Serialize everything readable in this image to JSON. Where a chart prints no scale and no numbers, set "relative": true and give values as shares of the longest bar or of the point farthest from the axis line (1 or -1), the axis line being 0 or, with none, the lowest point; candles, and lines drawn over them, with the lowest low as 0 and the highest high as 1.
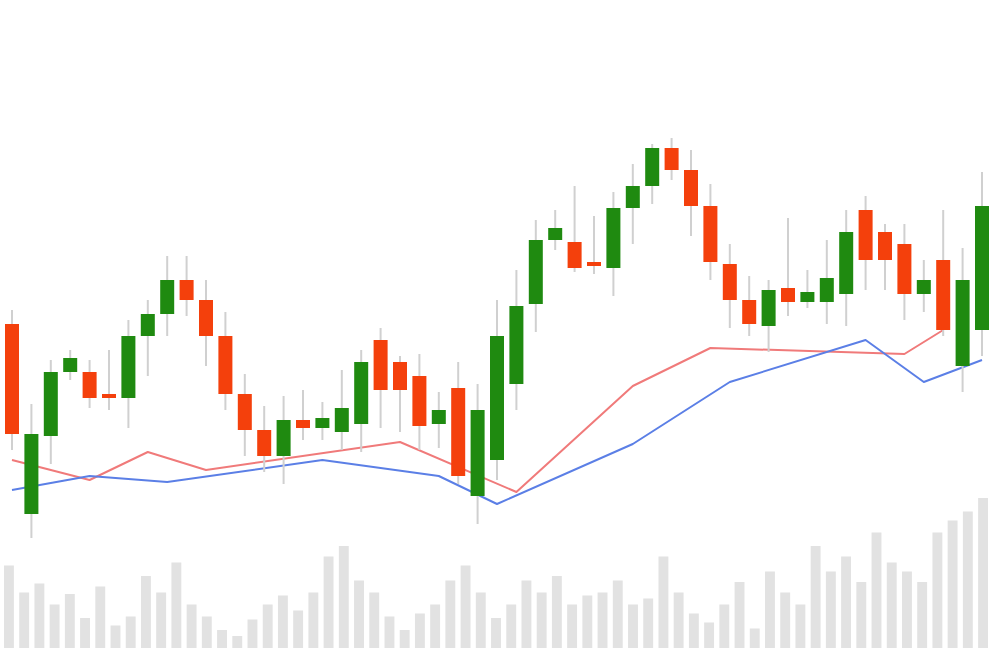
{
  "chart_data": [
    {
      "type": "candlestick",
      "relative": true,
      "categories": [
        null,
        null,
        null,
        null,
        null,
        null,
        null,
        null,
        null,
        null,
        null,
        null,
        null,
        null,
        null,
        null,
        null,
        null,
        null,
        null,
        null,
        null,
        null,
        null,
        null,
        null,
        null,
        null,
        null,
        null,
        null,
        null,
        null,
        null,
        null,
        null,
        null,
        null,
        null,
        null,
        null,
        null,
        null,
        null,
        null,
        null,
        null,
        null,
        null,
        null,
        null
      ],
      "ohlc": [
        [
          0.535,
          0.57,
          0.22,
          0.26
        ],
        [
          0.06,
          0.335,
          0,
          0.26
        ],
        [
          0.255,
          0.445,
          0.185,
          0.415
        ],
        [
          0.415,
          0.47,
          0.395,
          0.45
        ],
        [
          0.415,
          0.445,
          0.325,
          0.35
        ],
        [
          0.36,
          0.47,
          0.32,
          0.35
        ],
        [
          0.35,
          0.545,
          0.275,
          0.505
        ],
        [
          0.505,
          0.595,
          0.405,
          0.56
        ],
        [
          0.56,
          0.705,
          0.505,
          0.645
        ],
        [
          0.645,
          0.705,
          0.555,
          0.595
        ],
        [
          0.595,
          0.645,
          0.43,
          0.505
        ],
        [
          0.505,
          0.565,
          0.32,
          0.36
        ],
        [
          0.36,
          0.41,
          0.205,
          0.27
        ],
        [
          0.27,
          0.33,
          0.165,
          0.205
        ],
        [
          0.205,
          0.355,
          0.135,
          0.295
        ],
        [
          0.295,
          0.37,
          0.245,
          0.275
        ],
        [
          0.275,
          0.34,
          0.245,
          0.3
        ],
        [
          0.265,
          0.42,
          0.22,
          0.325
        ],
        [
          0.285,
          0.47,
          0.215,
          0.44
        ],
        [
          0.495,
          0.525,
          0.275,
          0.37
        ],
        [
          0.44,
          0.455,
          0.265,
          0.37
        ],
        [
          0.405,
          0.46,
          0.22,
          0.28
        ],
        [
          0.285,
          0.365,
          0.225,
          0.32
        ],
        [
          0.375,
          0.44,
          0.135,
          0.155
        ],
        [
          0.105,
          0.385,
          0.035,
          0.32
        ],
        [
          0.195,
          0.595,
          0.145,
          0.505
        ],
        [
          0.385,
          0.67,
          0.32,
          0.58
        ],
        [
          0.585,
          0.795,
          0.515,
          0.745
        ],
        [
          0.745,
          0.82,
          0.72,
          0.775
        ],
        [
          0.74,
          0.88,
          0.665,
          0.675
        ],
        [
          0.69,
          0.805,
          0.66,
          0.68
        ],
        [
          0.675,
          0.865,
          0.605,
          0.825
        ],
        [
          0.825,
          0.935,
          0.735,
          0.88
        ],
        [
          0.88,
          0.985,
          0.835,
          0.975
        ],
        [
          0.975,
          1,
          0.895,
          0.92
        ],
        [
          0.92,
          0.97,
          0.755,
          0.83
        ],
        [
          0.83,
          0.885,
          0.645,
          0.69
        ],
        [
          0.685,
          0.735,
          0.525,
          0.595
        ],
        [
          0.595,
          0.655,
          0.505,
          0.535
        ],
        [
          0.53,
          0.645,
          0.465,
          0.62
        ],
        [
          0.625,
          0.8,
          0.555,
          0.59
        ],
        [
          0.59,
          0.67,
          0.575,
          0.615
        ],
        [
          0.59,
          0.745,
          0.535,
          0.65
        ],
        [
          0.61,
          0.82,
          0.53,
          0.765
        ],
        [
          0.82,
          0.855,
          0.62,
          0.695
        ],
        [
          0.765,
          0.785,
          0.62,
          0.695
        ],
        [
          0.735,
          0.785,
          0.545,
          0.61
        ],
        [
          0.61,
          0.695,
          0.565,
          0.645
        ],
        [
          0.695,
          0.82,
          0.505,
          0.52
        ],
        [
          0.43,
          0.725,
          0.365,
          0.645
        ],
        [
          0.52,
          0.915,
          0.455,
          0.83
        ]
      ],
      "colors": [
        "#f4400c",
        "#1f8a10",
        "#1f8a10",
        "#1f8a10",
        "#f4400c",
        "#f4400c",
        "#1f8a10",
        "#1f8a10",
        "#1f8a10",
        "#f4400c",
        "#f4400c",
        "#f4400c",
        "#f4400c",
        "#f4400c",
        "#1f8a10",
        "#f4400c",
        "#1f8a10",
        "#1f8a10",
        "#1f8a10",
        "#f4400c",
        "#f4400c",
        "#f4400c",
        "#1f8a10",
        "#f4400c",
        "#1f8a10",
        "#1f8a10",
        "#1f8a10",
        "#1f8a10",
        "#1f8a10",
        "#f4400c",
        "#f4400c",
        "#1f8a10",
        "#1f8a10",
        "#1f8a10",
        "#f4400c",
        "#f4400c",
        "#f4400c",
        "#f4400c",
        "#f4400c",
        "#1f8a10",
        "#f4400c",
        "#1f8a10",
        "#1f8a10",
        "#1f8a10",
        "#f4400c",
        "#f4400c",
        "#f4400c",
        "#1f8a10",
        "#f4400c",
        "#1f8a10",
        "#1f8a10"
      ],
      "series": [
        {
          "type": "line",
          "color": "#f07a7a",
          "values": [
            0.195,
            null,
            null,
            null,
            0.145,
            null,
            null,
            0.215,
            null,
            null,
            0.17,
            null,
            null,
            null,
            null,
            null,
            null,
            null,
            null,
            null,
            0.24,
            null,
            null,
            null,
            null,
            null,
            0.115,
            null,
            null,
            null,
            null,
            null,
            0.38,
            null,
            null,
            null,
            0.475,
            null,
            null,
            null,
            null,
            null,
            null,
            null,
            null,
            null,
            0.46,
            null,
            0.52,
            null,
            null
          ]
        },
        {
          "type": "line",
          "color": "#5b7fe6",
          "values": [
            0.12,
            null,
            null,
            null,
            0.155,
            null,
            null,
            null,
            0.14,
            null,
            null,
            null,
            null,
            null,
            null,
            null,
            0.195,
            null,
            null,
            null,
            null,
            null,
            0.155,
            null,
            null,
            0.085,
            null,
            null,
            null,
            null,
            null,
            null,
            0.235,
            null,
            null,
            null,
            null,
            0.39,
            null,
            null,
            null,
            null,
            null,
            null,
            0.495,
            null,
            null,
            0.39,
            null,
            null,
            0.445
          ]
        }
      ]
    },
    {
      "type": "bar",
      "relative": true,
      "color": "#e2e2e2",
      "categories": [
        null,
        null,
        null,
        null,
        null,
        null,
        null,
        null,
        null,
        null,
        null,
        null,
        null,
        null,
        null,
        null,
        null,
        null,
        null,
        null,
        null,
        null,
        null,
        null,
        null,
        null,
        null,
        null,
        null,
        null,
        null,
        null,
        null,
        null,
        null,
        null,
        null,
        null,
        null,
        null,
        null,
        null,
        null,
        null,
        null,
        null,
        null,
        null,
        null,
        null,
        null,
        null,
        null,
        null,
        null,
        null,
        null,
        null,
        null,
        null,
        null,
        null,
        null,
        null,
        null
      ],
      "values": [
        0.55,
        0.37,
        0.43,
        0.29,
        0.36,
        0.2,
        0.41,
        0.15,
        0.21,
        0.48,
        0.37,
        0.57,
        0.29,
        0.21,
        0.12,
        0.08,
        0.19,
        0.29,
        0.35,
        0.25,
        0.37,
        0.61,
        0.68,
        0.45,
        0.37,
        0.21,
        0.12,
        0.23,
        0.29,
        0.45,
        0.55,
        0.37,
        0.2,
        0.29,
        0.45,
        0.37,
        0.48,
        0.29,
        0.35,
        0.37,
        0.45,
        0.29,
        0.33,
        0.61,
        0.37,
        0.23,
        0.17,
        0.29,
        0.44,
        0.13,
        0.51,
        0.37,
        0.29,
        0.68,
        0.51,
        0.61,
        0.44,
        0.77,
        0.57,
        0.51,
        0.44,
        0.77,
        0.85,
        0.91,
        1
      ]
    }
  ]
}
